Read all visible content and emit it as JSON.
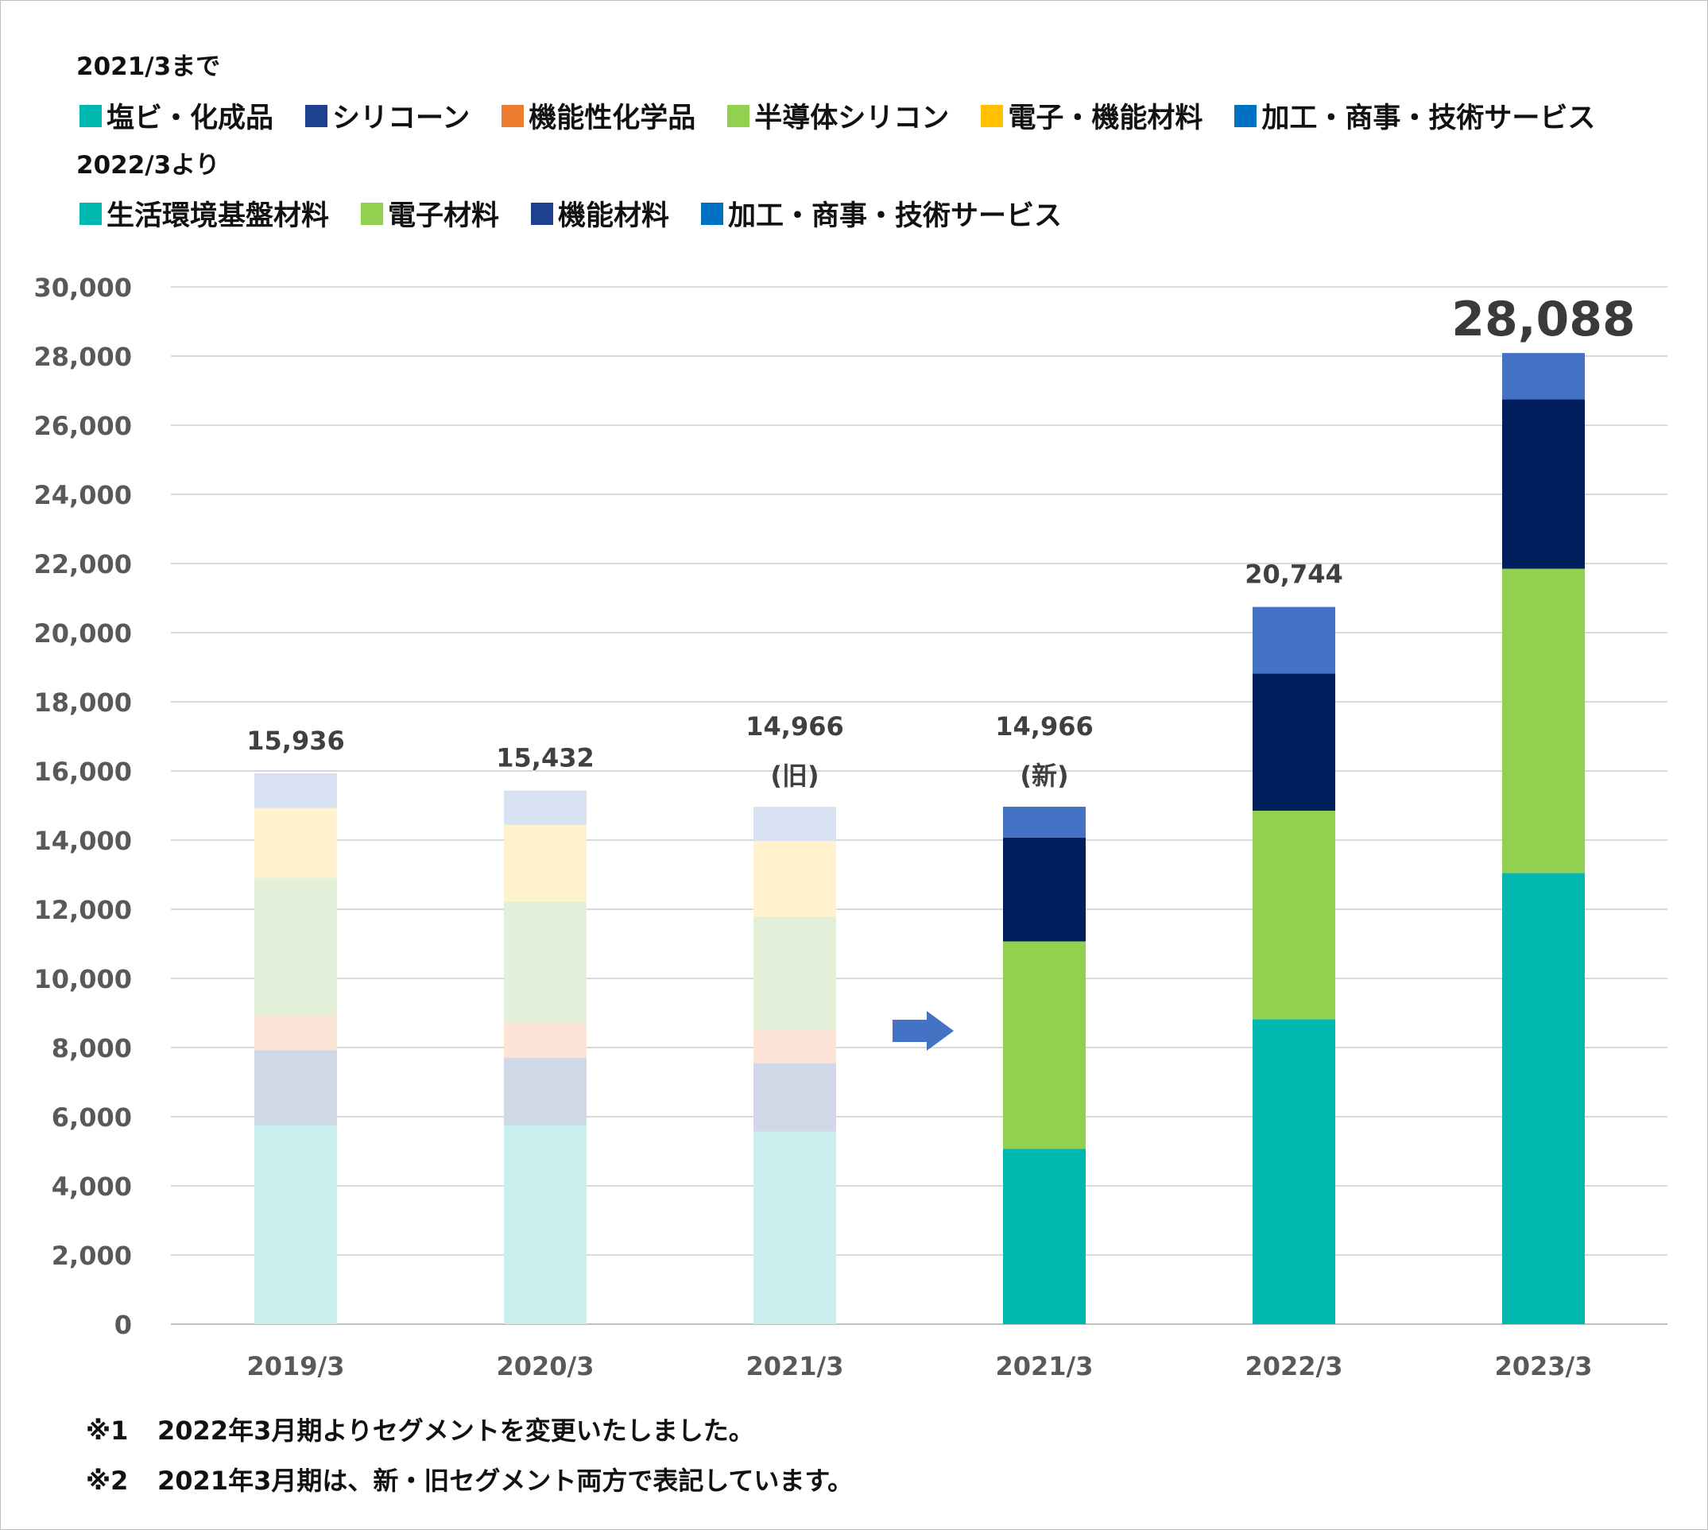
{
  "legend": {
    "old_heading": "2021/3まで",
    "old_items": [
      {
        "label": "塩ビ・化成品",
        "color": "#00b8b0"
      },
      {
        "label": "シリコーン",
        "color": "#1f3f8f"
      },
      {
        "label": "機能性化学品",
        "color": "#ed7d31"
      },
      {
        "label": "半導体シリコン",
        "color": "#92d050"
      },
      {
        "label": "電子・機能材料",
        "color": "#ffc000"
      },
      {
        "label": "加工・商事・技術サービス",
        "color": "#0070c0"
      }
    ],
    "new_heading": "2022/3より",
    "new_items": [
      {
        "label": "生活環境基盤材料",
        "color": "#00b8b0"
      },
      {
        "label": "電子材料",
        "color": "#92d050"
      },
      {
        "label": "機能材料",
        "color": "#1f3f8f"
      },
      {
        "label": "加工・商事・技術サービス",
        "color": "#0070c0"
      }
    ]
  },
  "chart_data": {
    "type": "bar",
    "stacked": true,
    "y_axis": {
      "min": 0,
      "max": 30000,
      "step": 2000
    },
    "grid": true,
    "categories": [
      "2019/3",
      "2020/3",
      "2021/3",
      "2021/3",
      "2022/3",
      "2023/3"
    ],
    "totals": [
      "15,936",
      "15,432",
      "14,966",
      "14,966",
      "20,744",
      "28,088"
    ],
    "total_suffix": [
      "",
      "",
      "(旧)",
      "(新)",
      "",
      ""
    ],
    "old_segment_colors": [
      "#c9eeee",
      "#d1d8e8",
      "#fbe4d6",
      "#e3efd9",
      "#fff2cc",
      "#d9e2f3"
    ],
    "new_segment_colors": [
      "#00b8b0",
      "#92d050",
      "#001f5c",
      "#4472c4"
    ],
    "old_series": [
      {
        "category": "2019/3",
        "values": [
          5750,
          2170,
          1010,
          3980,
          2020,
          1006
        ]
      },
      {
        "category": "2020/3",
        "values": [
          5750,
          1960,
          980,
          3530,
          2220,
          992
        ]
      },
      {
        "category": "2021/3",
        "values": [
          5570,
          1980,
          950,
          3280,
          2190,
          996
        ]
      }
    ],
    "new_series": [
      {
        "category": "2021/3",
        "values": [
          5070,
          6000,
          3000,
          896
        ]
      },
      {
        "category": "2022/3",
        "values": [
          8820,
          6030,
          3970,
          1924
        ]
      },
      {
        "category": "2023/3",
        "values": [
          13050,
          8800,
          4900,
          1338
        ]
      }
    ]
  },
  "notes": [
    {
      "mark": "※1",
      "text": "2022年3月期よりセグメントを変更いたしました。"
    },
    {
      "mark": "※2",
      "text": "2021年3月期は、新・旧セグメント両方で表記しています。"
    }
  ]
}
